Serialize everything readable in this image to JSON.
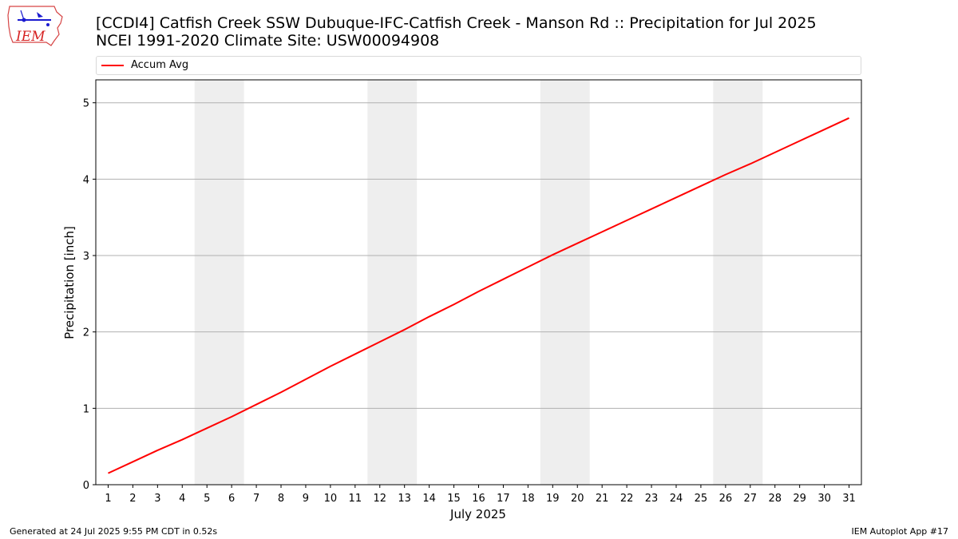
{
  "title_line1": "[CCDI4] Catfish Creek  SSW Dubuque-IFC-Catfish Creek - Manson Rd :: Precipitation for Jul 2025",
  "title_line2": "NCEI 1991-2020 Climate Site: USW00094908",
  "logo_text": "IEM",
  "footer": {
    "generated": "Generated at 24 Jul 2025 9:55 PM CDT in 0.52s",
    "app": "IEM Autoplot App #17"
  },
  "colors": {
    "line": "#ff0000",
    "weekend": "#eeeeee",
    "grid": "#b0b0b0"
  },
  "chart_data": {
    "type": "line",
    "xlabel": "July 2025",
    "ylabel": "Precipitation [inch]",
    "xlim": [
      0.5,
      31.5
    ],
    "ylim": [
      0,
      5.3
    ],
    "x": [
      1,
      2,
      3,
      4,
      5,
      6,
      7,
      8,
      9,
      10,
      11,
      12,
      13,
      14,
      15,
      16,
      17,
      18,
      19,
      20,
      21,
      22,
      23,
      24,
      25,
      26,
      27,
      28,
      29,
      30,
      31
    ],
    "xticks": [
      "1",
      "2",
      "3",
      "4",
      "5",
      "6",
      "7",
      "8",
      "9",
      "10",
      "11",
      "12",
      "13",
      "14",
      "15",
      "16",
      "17",
      "18",
      "19",
      "20",
      "21",
      "22",
      "23",
      "24",
      "25",
      "26",
      "27",
      "28",
      "29",
      "30",
      "31"
    ],
    "yticks": [
      0,
      1,
      2,
      3,
      4,
      5
    ],
    "series": [
      {
        "name": "Accum Avg",
        "values": [
          0.15,
          0.3,
          0.45,
          0.59,
          0.74,
          0.89,
          1.05,
          1.21,
          1.38,
          1.55,
          1.71,
          1.87,
          2.03,
          2.2,
          2.36,
          2.53,
          2.69,
          2.85,
          3.01,
          3.16,
          3.31,
          3.46,
          3.61,
          3.76,
          3.91,
          4.06,
          4.2,
          4.35,
          4.5,
          4.65,
          4.8
        ]
      }
    ],
    "shaded_day_ranges": [
      [
        5,
        6
      ],
      [
        12,
        13
      ],
      [
        19,
        20
      ],
      [
        26,
        27
      ]
    ],
    "grid": "y-major",
    "legend_position": "top"
  }
}
